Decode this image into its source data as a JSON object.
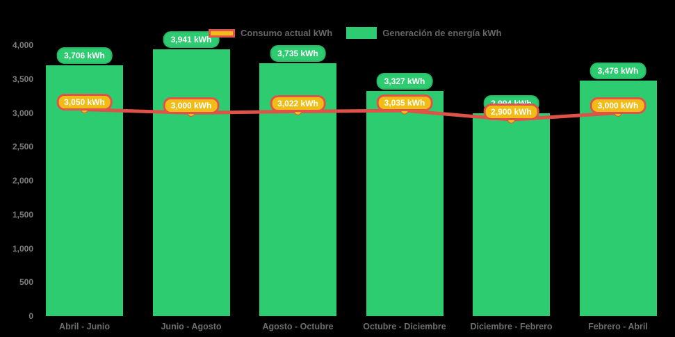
{
  "chart_data": {
    "type": "bar",
    "combo": "bar+line",
    "title": "",
    "xlabel": "",
    "ylabel": "",
    "background": "#000000",
    "grid": false,
    "legend_position": "top-center",
    "ylim": [
      0,
      4000
    ],
    "yticks": [
      {
        "value": 4000,
        "label": "4,000"
      },
      {
        "value": 3500,
        "label": "3,500"
      },
      {
        "value": 3000,
        "label": "3,000"
      },
      {
        "value": 2500,
        "label": "2,500"
      },
      {
        "value": 2000,
        "label": "2,000"
      },
      {
        "value": 1500,
        "label": "1,500"
      },
      {
        "value": 1000,
        "label": "1,000"
      },
      {
        "value": 500,
        "label": "500"
      },
      {
        "value": 0,
        "label": "0"
      }
    ],
    "categories": [
      "Abril - Junio",
      "Junio - Agosto",
      "Agosto - Octubre",
      "Octubre - Diciembre",
      "Diciembre - Febrero",
      "Febrero - Abril"
    ],
    "series": [
      {
        "name": "Generación de energía kWh",
        "type": "bar",
        "color": "#2ECC71",
        "values": [
          3706,
          3941,
          3735,
          3327,
          2994,
          3476
        ],
        "labels": [
          "3,706 kWh",
          "3,941 kWh",
          "3,735 kWh",
          "3,327 kWh",
          "2,994 kWh",
          "3,476 kWh"
        ]
      },
      {
        "name": "Consumo actual kWh",
        "type": "line",
        "color": "#DD5347",
        "marker_color": "#F2BC16",
        "values": [
          3050,
          3000,
          3022,
          3035,
          2900,
          3000
        ],
        "labels": [
          "3,050 kWh",
          "3,000 kWh",
          "3,022 kWh",
          "3,035 kWh",
          "2,900 kWh",
          "3,000 kWh"
        ]
      }
    ]
  },
  "legend": {
    "consumption_label": "Consumo actual kWh",
    "generation_label": "Generación de energía kWh"
  },
  "colors": {
    "bar_green": "#2ECC71",
    "line_red": "#DD5347",
    "badge_gold": "#F2BC16",
    "badge_gold_border": "#E0534A",
    "axis_text": "#6e6e6e",
    "legend_text": "#666666",
    "background": "#000000"
  }
}
